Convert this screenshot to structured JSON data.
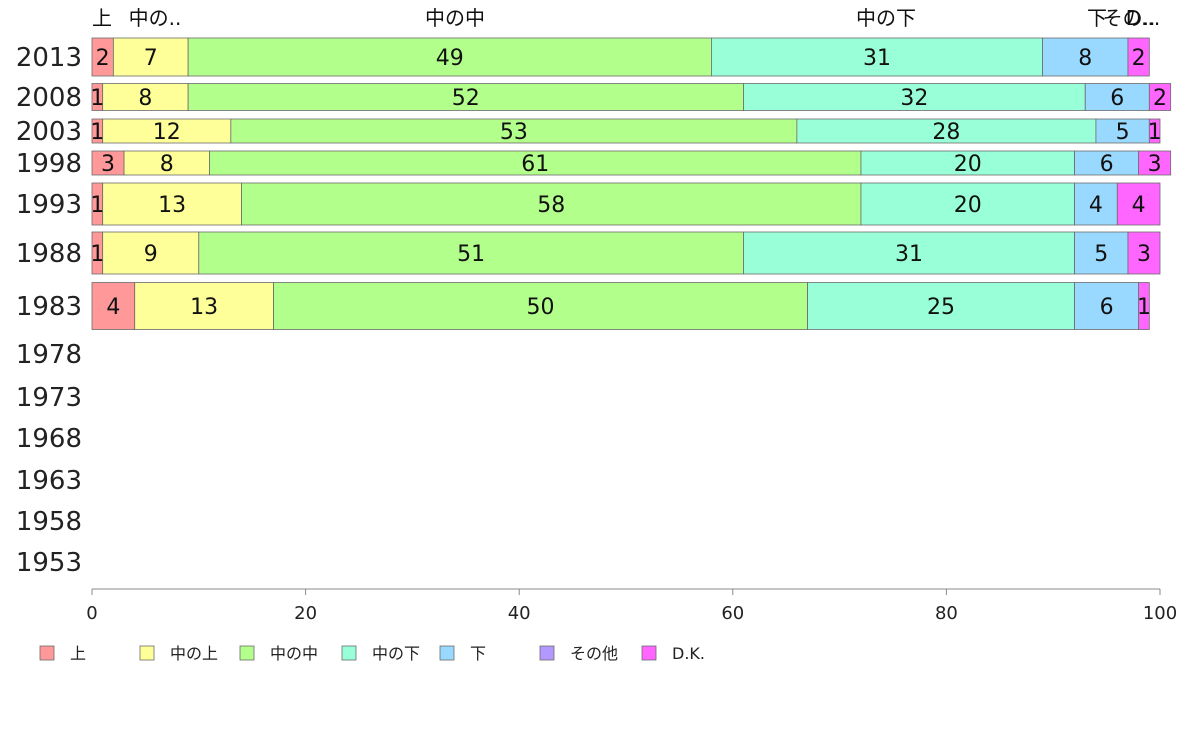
{
  "chart_data": {
    "type": "bar",
    "orientation": "horizontal",
    "stacked": true,
    "categories": [
      "2013",
      "2008",
      "2003",
      "1998",
      "1993",
      "1988",
      "1983",
      "1978",
      "1973",
      "1968",
      "1963",
      "1958",
      "1953"
    ],
    "series": [
      {
        "name": "上",
        "color": "#ff9999",
        "values": [
          2,
          1,
          1,
          3,
          1,
          1,
          4,
          null,
          null,
          null,
          null,
          null,
          null
        ]
      },
      {
        "name": "中の上",
        "color": "#ffff99",
        "values": [
          7,
          8,
          12,
          8,
          13,
          9,
          13,
          null,
          null,
          null,
          null,
          null,
          null
        ]
      },
      {
        "name": "中の中",
        "color": "#b3ff8c",
        "values": [
          49,
          52,
          53,
          61,
          58,
          51,
          50,
          null,
          null,
          null,
          null,
          null,
          null
        ]
      },
      {
        "name": "中の下",
        "color": "#99ffd9",
        "values": [
          31,
          32,
          28,
          20,
          20,
          31,
          25,
          null,
          null,
          null,
          null,
          null,
          null
        ]
      },
      {
        "name": "下",
        "color": "#99d9ff",
        "values": [
          8,
          6,
          5,
          6,
          4,
          5,
          6,
          null,
          null,
          null,
          null,
          null,
          null
        ]
      },
      {
        "name": "その他",
        "color": "#b399ff",
        "values": [
          0,
          0,
          0,
          0,
          0,
          0,
          0,
          null,
          null,
          null,
          null,
          null,
          null
        ]
      },
      {
        "name": "D.K.",
        "color": "#ff66ff",
        "values": [
          2,
          2,
          1,
          3,
          4,
          3,
          1,
          null,
          null,
          null,
          null,
          null,
          null
        ]
      }
    ],
    "top_labels": [
      "上",
      "中の..",
      "中の中",
      "中の下",
      "下",
      "その..",
      "D..."
    ],
    "xlim": [
      0,
      100
    ],
    "xticks": [
      "0",
      "20",
      "40",
      "60",
      "80",
      "100"
    ],
    "legend_position": "bottom",
    "grid": false
  }
}
